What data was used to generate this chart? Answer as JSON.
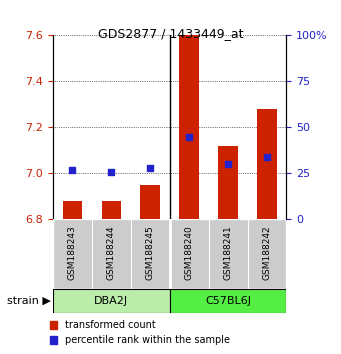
{
  "title": "GDS2877 / 1433449_at",
  "samples": [
    "GSM188243",
    "GSM188244",
    "GSM188245",
    "GSM188240",
    "GSM188241",
    "GSM188242"
  ],
  "group_dba": {
    "name": "DBA2J",
    "color": "#BBEEAA",
    "indices": [
      0,
      1,
      2
    ]
  },
  "group_c57": {
    "name": "C57BL6J",
    "color": "#55EE44",
    "indices": [
      3,
      4,
      5
    ]
  },
  "transformed_counts": [
    6.88,
    6.88,
    6.95,
    7.6,
    7.12,
    7.28
  ],
  "percentile_ranks": [
    27,
    26,
    28,
    45,
    30,
    34
  ],
  "ylim_left": [
    6.8,
    7.6
  ],
  "ylim_right": [
    0,
    100
  ],
  "yticks_left": [
    6.8,
    7.0,
    7.2,
    7.4,
    7.6
  ],
  "yticks_right": [
    0,
    25,
    50,
    75,
    100
  ],
  "bar_color": "#CC2200",
  "dot_color": "#2222CC",
  "bar_width": 0.5,
  "legend_labels": [
    "transformed count",
    "percentile rank within the sample"
  ],
  "legend_colors": [
    "#CC2200",
    "#2222CC"
  ],
  "bg_color": "#FFFFFF",
  "left_tick_color": "#CC2200",
  "right_tick_color": "#2222CC",
  "sample_area_color": "#CCCCCC",
  "title_fontsize": 9,
  "tick_fontsize": 8,
  "sample_fontsize": 6.5,
  "group_fontsize": 8,
  "legend_fontsize": 7
}
